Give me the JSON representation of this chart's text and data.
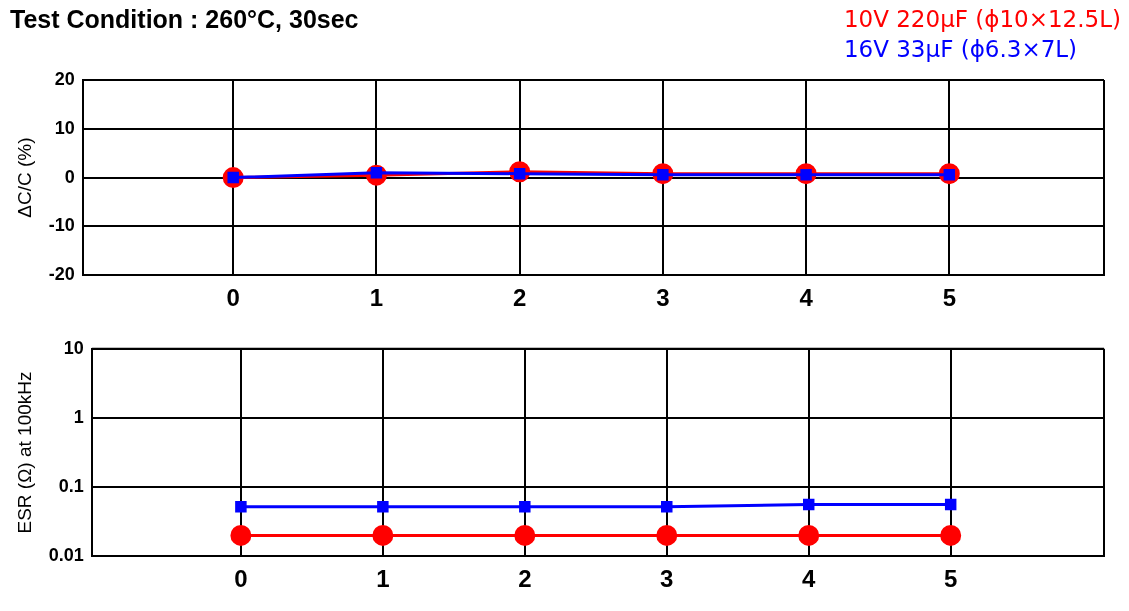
{
  "chart_data": [
    {
      "type": "line",
      "title": "Test Condition : 260°C, 30sec",
      "ylabel": "ΔC/C (%)",
      "x": [
        0,
        1,
        2,
        3,
        4,
        5
      ],
      "xlim": [
        -1.05,
        6.08
      ],
      "xticks": [
        0,
        1,
        2,
        3,
        4,
        5
      ],
      "ylim": [
        -20,
        20
      ],
      "yticks": [
        -20,
        -10,
        0,
        10,
        20
      ],
      "grid": true,
      "legend": "top right",
      "series": [
        {
          "name": "10V 220μF (ϕ10×12.5L)",
          "color": "#ff0000",
          "marker": "circle",
          "values": [
            0,
            0.5,
            1.2,
            0.8,
            0.8,
            0.8
          ]
        },
        {
          "name": "16V 33μF (ϕ6.3×7L)",
          "color": "#0000ff",
          "marker": "square",
          "values": [
            0,
            1.0,
            0.8,
            0.6,
            0.6,
            0.6
          ]
        }
      ]
    },
    {
      "type": "line",
      "ylabel": "ESR (Ω) at 100kHz",
      "x": [
        0,
        1,
        2,
        3,
        4,
        5
      ],
      "xlim": [
        -1.05,
        6.08
      ],
      "xticks": [
        0,
        1,
        2,
        3,
        4,
        5
      ],
      "log": true,
      "ylim": [
        0.01,
        10
      ],
      "yticks": [
        0.01,
        0.1,
        1,
        10
      ],
      "grid": true,
      "series": [
        {
          "color": "#ff0000",
          "marker": "circle",
          "values": [
            0.02,
            0.02,
            0.02,
            0.02,
            0.02,
            0.02
          ]
        },
        {
          "color": "#0000ff",
          "marker": "square",
          "values": [
            0.052,
            0.052,
            0.052,
            0.052,
            0.056,
            0.056
          ]
        }
      ]
    }
  ]
}
